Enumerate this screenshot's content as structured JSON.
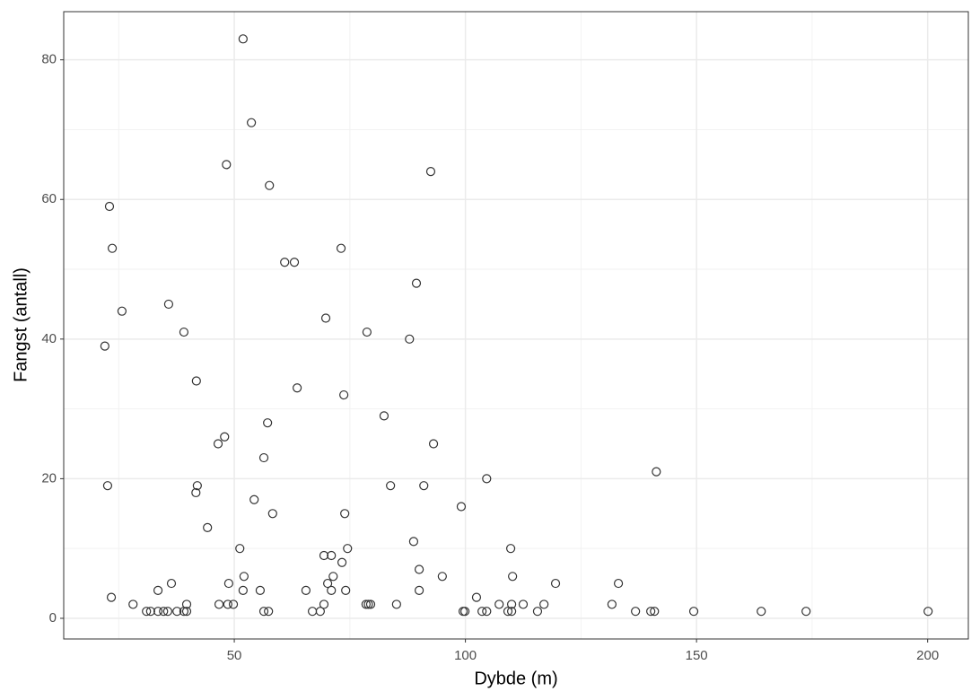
{
  "chart_data": {
    "type": "scatter",
    "xlabel": "Dybde (m)",
    "ylabel": "Fangst (antall)",
    "x": [
      51.9,
      53.7,
      48.3,
      92.5,
      57.6,
      23.0,
      23.6,
      73.1,
      60.9,
      63.0,
      89.4,
      35.8,
      25.7,
      69.8,
      39.1,
      78.7,
      87.9,
      22.0,
      41.8,
      63.6,
      73.7,
      82.4,
      57.2,
      47.9,
      46.5,
      93.1,
      56.4,
      141.3,
      104.6,
      22.6,
      42.0,
      83.8,
      91.0,
      41.7,
      54.3,
      99.1,
      58.3,
      73.9,
      44.2,
      88.8,
      51.2,
      74.5,
      109.8,
      69.4,
      71.0,
      73.3,
      90.0,
      52.1,
      71.4,
      95.0,
      110.2,
      36.4,
      48.8,
      70.2,
      119.5,
      133.1,
      33.5,
      51.9,
      55.6,
      65.5,
      71.0,
      74.1,
      90.0,
      23.4,
      102.4,
      28.1,
      39.7,
      46.7,
      48.6,
      49.8,
      69.4,
      78.5,
      79.0,
      79.5,
      85.1,
      107.3,
      110.0,
      112.5,
      117.0,
      131.7,
      31.0,
      31.9,
      33.5,
      34.7,
      35.6,
      37.6,
      39.1,
      39.7,
      56.4,
      57.4,
      66.9,
      68.6,
      99.5,
      99.9,
      103.6,
      104.6,
      109.2,
      110.0,
      115.6,
      136.8,
      140.1,
      140.9,
      149.4,
      164.0,
      173.7,
      200.1
    ],
    "values": [
      83,
      71,
      65,
      64,
      62,
      59,
      53,
      53,
      51,
      51,
      48,
      45,
      44,
      43,
      41,
      41,
      40,
      39,
      34,
      33,
      32,
      29,
      28,
      26,
      25,
      25,
      23,
      21,
      20,
      19,
      19,
      19,
      19,
      18,
      17,
      16,
      15,
      15,
      13,
      11,
      10,
      10,
      10,
      9,
      9,
      8,
      7,
      6,
      6,
      6,
      6,
      5,
      5,
      5,
      5,
      5,
      4,
      4,
      4,
      4,
      4,
      4,
      4,
      3,
      3,
      2,
      2,
      2,
      2,
      2,
      2,
      2,
      2,
      2,
      2,
      2,
      2,
      2,
      2,
      2,
      1,
      1,
      1,
      1,
      1,
      1,
      1,
      1,
      1,
      1,
      1,
      1,
      1,
      1,
      1,
      1,
      1,
      1,
      1,
      1,
      1,
      1,
      1,
      1,
      1,
      1
    ],
    "color": "#333333",
    "xlim": [
      13.1,
      208.8
    ],
    "ylim": [
      -2.96,
      86.9
    ],
    "xticks": [
      50,
      100,
      150,
      200
    ],
    "yticks": [
      0,
      20,
      40,
      60,
      80
    ],
    "grid": true
  }
}
